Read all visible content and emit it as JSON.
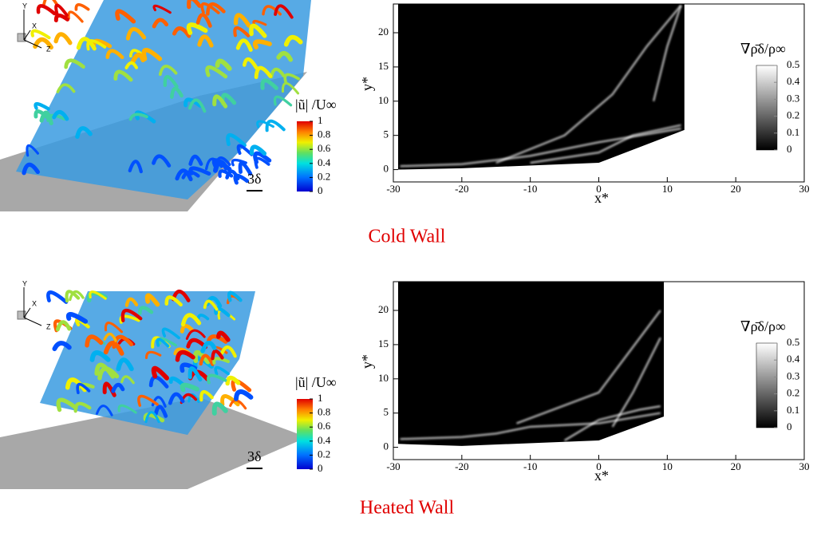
{
  "panels": [
    {
      "caption": "Cold Wall",
      "isosurface": {
        "axis_labels": [
          "Y",
          "X",
          "Z"
        ],
        "scale_label": "3δ",
        "colorbar": {
          "title": "|ũ| /U∞",
          "lim": [
            0,
            1
          ],
          "ticks": [
            1,
            0.8,
            0.6,
            0.4,
            0.2,
            0
          ]
        }
      },
      "contour": {
        "xlabel": "x*",
        "ylabel": "y*",
        "xlim": [
          -30,
          30
        ],
        "xticks": [
          -30,
          -20,
          -10,
          0,
          10,
          20,
          30
        ],
        "ylim": [
          -1.8,
          24.2
        ],
        "yticks": [
          0,
          5,
          10,
          15,
          20
        ],
        "colorbar": {
          "title": "∇ρ̄δ/ρ∞",
          "lim": [
            0,
            0.5
          ],
          "ticks": [
            0.5,
            0.4,
            0.3,
            0.2,
            0.1,
            0
          ]
        }
      }
    },
    {
      "caption": "Heated Wall",
      "isosurface": {
        "axis_labels": [
          "Y",
          "X",
          "Z"
        ],
        "scale_label": "3δ",
        "colorbar": {
          "title": "|ũ| /U∞",
          "lim": [
            0,
            1
          ],
          "ticks": [
            1,
            0.8,
            0.6,
            0.4,
            0.2,
            0
          ]
        }
      },
      "contour": {
        "xlabel": "x*",
        "ylabel": "y*",
        "xlim": [
          -30,
          30
        ],
        "xticks": [
          -30,
          -20,
          -10,
          0,
          10,
          20,
          30
        ],
        "ylim": [
          -1.8,
          24.2
        ],
        "yticks": [
          0,
          5,
          10,
          15,
          20
        ],
        "colorbar": {
          "title": "∇ρ̄δ/ρ∞",
          "lim": [
            0,
            0.5
          ],
          "ticks": [
            0.5,
            0.4,
            0.3,
            0.2,
            0.1,
            0
          ]
        }
      }
    }
  ]
}
